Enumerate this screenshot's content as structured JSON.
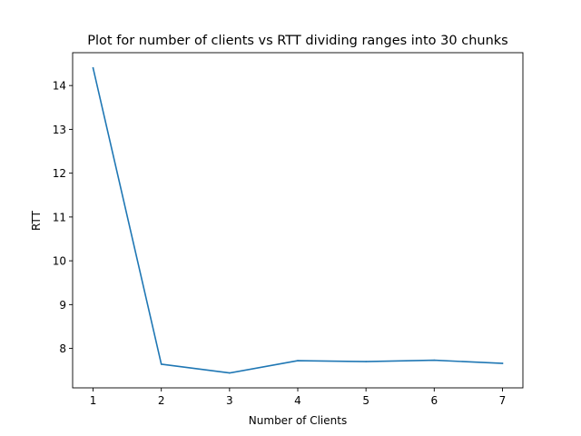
{
  "chart_data": {
    "type": "line",
    "title": "Plot for number of clients vs RTT dividing ranges into 30 chunks",
    "xlabel": "Number of Clients",
    "ylabel": "RTT",
    "x": [
      1,
      2,
      3,
      4,
      5,
      6,
      7
    ],
    "series": [
      {
        "values": [
          14.4,
          7.64,
          7.44,
          7.72,
          7.7,
          7.73,
          7.66
        ],
        "color": "#1f77b4"
      }
    ],
    "xlim": [
      0.7,
      7.3
    ],
    "ylim": [
      7.1,
      14.75
    ],
    "xticks": [
      1,
      2,
      3,
      4,
      5,
      6,
      7
    ],
    "yticks": [
      8,
      9,
      10,
      11,
      12,
      13,
      14
    ],
    "grid": false,
    "legend": false
  }
}
